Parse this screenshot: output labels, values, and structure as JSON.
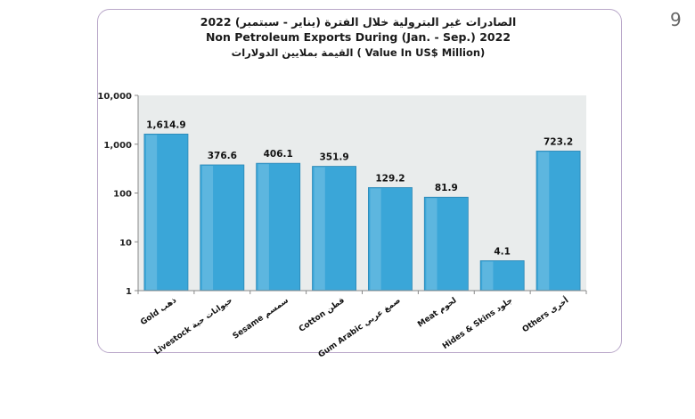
{
  "page_number": "9",
  "chart_data": {
    "type": "bar",
    "title_ar": "الصادرات غير البترولية خلال الفترة (يناير - سبتمبر) 2022",
    "title_en": "Non Petroleum Exports During (Jan. - Sep.) 2022",
    "subtitle": "القيمة بملايين الدولارات  ( Value In US$ Million)",
    "xlabel": "",
    "ylabel": "",
    "y_scale": "log",
    "ylim": [
      1,
      10000
    ],
    "y_ticks": [
      1,
      10,
      100,
      1000,
      10000
    ],
    "y_tick_labels": [
      "1",
      "10",
      "100",
      "1,000",
      "10,000"
    ],
    "grid": false,
    "legend": "none",
    "bar_color": "#3aa6d8",
    "plot_background": "#e9ecec",
    "categories": [
      "Gold ذهب",
      "Livestock حيوانات حية",
      "Sesame سمسم",
      "Cotton قطن",
      "Gum Arabic صمغ عربي",
      "Meat لحوم",
      "Hides & Skins جلود",
      "Others أخرى"
    ],
    "values": [
      1614.9,
      376.6,
      406.1,
      351.9,
      129.2,
      81.9,
      4.1,
      723.2
    ],
    "value_labels": [
      "1,614.9",
      "376.6",
      "406.1",
      "351.9",
      "129.2",
      "81.9",
      "4.1",
      "723.2"
    ]
  }
}
